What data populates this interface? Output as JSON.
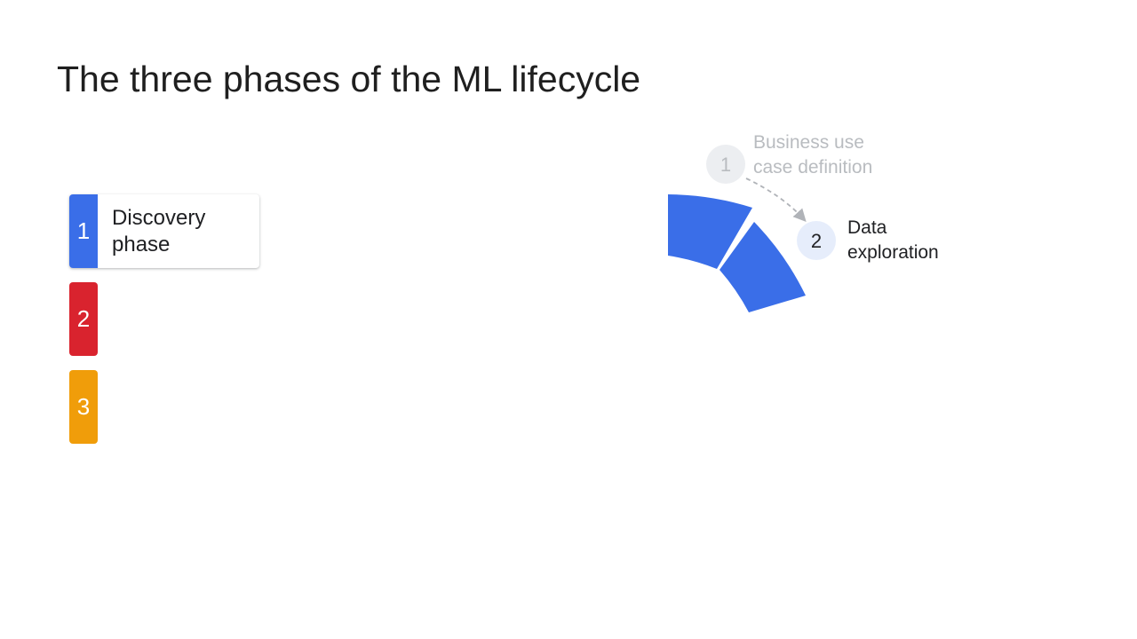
{
  "title": "The three phases of the ML lifecycle",
  "phases": [
    {
      "number": "1",
      "label": "Discovery\nphase",
      "color": "#3a6ee8"
    },
    {
      "number": "2",
      "label": "",
      "color": "#d9232e"
    },
    {
      "number": "3",
      "label": "",
      "color": "#f09d0a"
    }
  ],
  "steps": [
    {
      "number": "1",
      "label": "Business use\ncase definition",
      "state": "past"
    },
    {
      "number": "2",
      "label": "Data\nexploration",
      "state": "current"
    }
  ],
  "colors": {
    "wheel": "#3a6ee8",
    "past_text": "#b9bcc0",
    "past_circle": "#eceef1",
    "current_circle": "#e6edfb",
    "arrow": "#b0b3b8"
  }
}
